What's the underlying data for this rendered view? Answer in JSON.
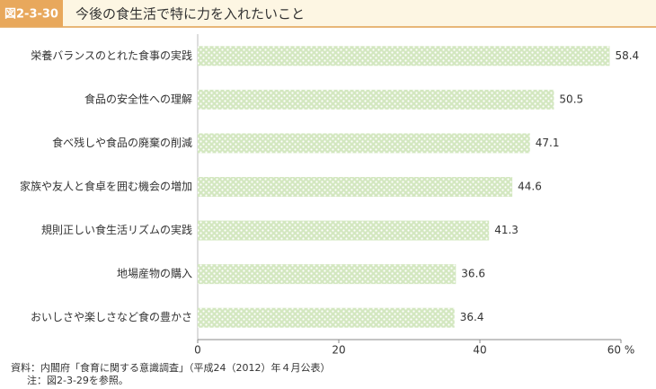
{
  "chart_data": {
    "type": "bar",
    "orientation": "horizontal",
    "figure_label": "図2-3-30",
    "title": "今後の食生活で特に力を入れたいこと",
    "categories": [
      "栄養バランスのとれた食事の実践",
      "食品の安全性への理解",
      "食べ残しや食品の廃棄の削減",
      "家族や友人と食卓を囲む機会の増加",
      "規則正しい食生活リズムの実践",
      "地場産物の購入",
      "おいしさや楽しさなど食の豊かさ"
    ],
    "values": [
      58.4,
      50.5,
      47.1,
      44.6,
      41.3,
      36.6,
      36.4
    ],
    "color": "#d3e7c0",
    "xlim": [
      0,
      60
    ],
    "xticks": [
      0,
      20,
      40,
      {
        "value": 60,
        "label": "60 %"
      }
    ],
    "grid": false,
    "notes": [
      "資料：内閣府「食育に関する意識調査」（平成24（2012）年４月公表）",
      "注：図2-3-29を参照。"
    ]
  }
}
